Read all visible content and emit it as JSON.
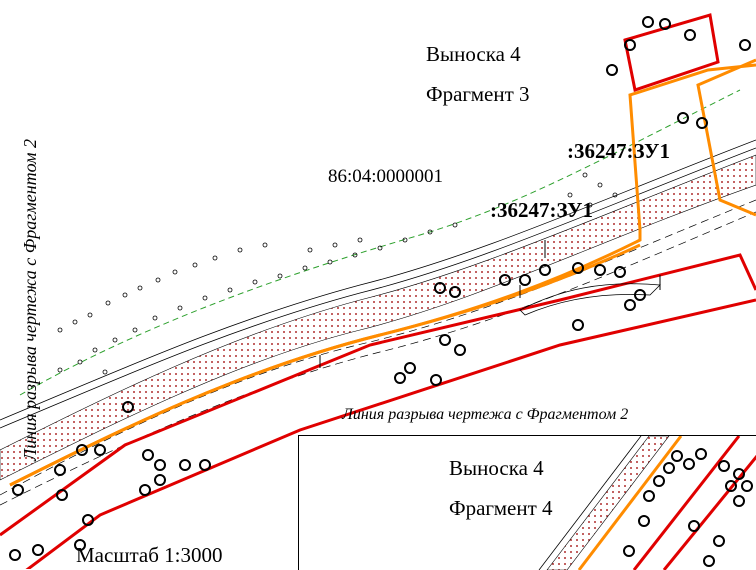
{
  "callout_main": {
    "title": "Выноска 4",
    "fragment": "Фрагмент 3"
  },
  "callout_inset": {
    "title": "Выноска 4",
    "fragment": "Фрагмент 4"
  },
  "cadastral_quarter": "86:04:0000001",
  "parcels": [
    ":36247:ЗУ1",
    ":36247:ЗУ1"
  ],
  "break_line_vertical": "Линия разрыва чертежа с Фрагментом 2",
  "break_line_horizontal": "Линия разрыва чертежа с Фрагментом 2",
  "scale": "Масштаб 1:3000",
  "colors": {
    "red_boundary": "#e00000",
    "orange_boundary": "#ff8c00",
    "road_fill": "#b03030",
    "green_line": "#2ca02c"
  }
}
